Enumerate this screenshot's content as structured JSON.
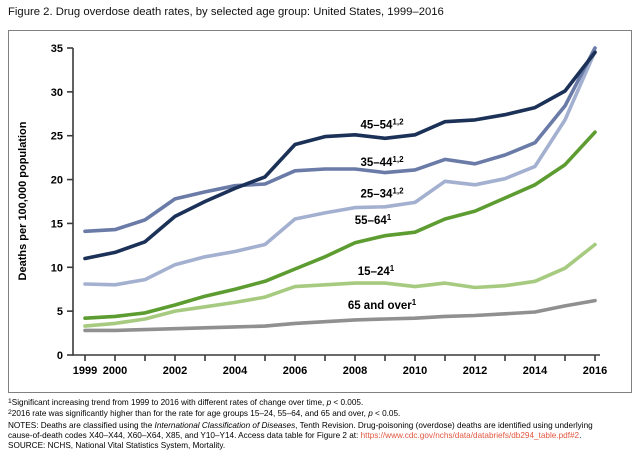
{
  "title": "Figure 2. Drug overdose death rates, by selected age group: United States, 1999–2016",
  "colors": {
    "axis": "#3a3a3a",
    "frame_border": "#808080",
    "link": "#e25740",
    "text": "#000000"
  },
  "chart_data": {
    "type": "line",
    "title": "Figure 2. Drug overdose death rates, by selected age group: United States, 1999–2016",
    "xlabel": "",
    "ylabel": "Deaths per 100,000 population",
    "ylim": [
      0,
      35
    ],
    "yticks": [
      0,
      5,
      10,
      15,
      20,
      25,
      30,
      35
    ],
    "x": [
      1999,
      2000,
      2001,
      2002,
      2003,
      2004,
      2005,
      2006,
      2007,
      2008,
      2009,
      2010,
      2011,
      2012,
      2013,
      2014,
      2015,
      2016
    ],
    "xtick_labeled": [
      1999,
      2000,
      2002,
      2004,
      2006,
      2008,
      2010,
      2012,
      2014,
      2016
    ],
    "grid": false,
    "legend_position": "inline-labels",
    "series": [
      {
        "name": "65 and over",
        "sup": "1",
        "color": "#909090",
        "values": [
          2.8,
          2.8,
          2.9,
          3.0,
          3.1,
          3.2,
          3.3,
          3.6,
          3.8,
          4.0,
          4.1,
          4.2,
          4.4,
          4.5,
          4.7,
          4.9,
          5.6,
          6.2
        ]
      },
      {
        "name": "15–24",
        "sup": "1",
        "color": "#a6cb80",
        "values": [
          3.3,
          3.6,
          4.1,
          5.0,
          5.5,
          6.0,
          6.6,
          7.8,
          8.0,
          8.2,
          8.2,
          7.8,
          8.2,
          7.7,
          7.9,
          8.4,
          9.9,
          12.6
        ]
      },
      {
        "name": "55–64",
        "sup": "1",
        "color": "#5d9c31",
        "values": [
          4.2,
          4.4,
          4.8,
          5.7,
          6.7,
          7.5,
          8.4,
          9.8,
          11.2,
          12.8,
          13.6,
          14.0,
          15.5,
          16.4,
          17.9,
          19.4,
          21.7,
          25.4
        ]
      },
      {
        "name": "25–34",
        "sup": "1,2",
        "color": "#a3b0d0",
        "values": [
          8.1,
          8.0,
          8.6,
          10.3,
          11.2,
          11.8,
          12.6,
          15.5,
          16.2,
          16.8,
          16.9,
          17.4,
          19.8,
          19.4,
          20.1,
          21.5,
          26.8,
          34.6
        ]
      },
      {
        "name": "35–44",
        "sup": "1,2",
        "color": "#6a7ba8",
        "values": [
          14.1,
          14.3,
          15.4,
          17.8,
          18.6,
          19.3,
          19.5,
          21.0,
          21.2,
          21.2,
          20.8,
          21.1,
          22.3,
          21.8,
          22.8,
          24.2,
          28.4,
          35.0
        ]
      },
      {
        "name": "45–54",
        "sup": "1,2",
        "color": "#1b3157",
        "values": [
          11.0,
          11.7,
          12.9,
          15.8,
          17.5,
          19.0,
          20.3,
          24.0,
          24.9,
          25.1,
          24.7,
          25.1,
          26.6,
          26.8,
          27.4,
          28.2,
          30.1,
          34.5
        ]
      }
    ],
    "annotations": [
      {
        "text": "45–54",
        "sup": "1,2",
        "x": 2008.9,
        "y": 26.3
      },
      {
        "text": "35–44",
        "sup": "1,2",
        "x": 2008.9,
        "y": 22.0
      },
      {
        "text": "25–34",
        "sup": "1,2",
        "x": 2008.9,
        "y": 18.4
      },
      {
        "text": "55–64",
        "sup": "1",
        "x": 2008.6,
        "y": 15.4
      },
      {
        "text": "15–24",
        "sup": "1",
        "x": 2008.7,
        "y": 9.6
      },
      {
        "text": "65 and over",
        "sup": "1",
        "x": 2008.9,
        "y": 5.7
      }
    ]
  },
  "footnotes": [
    [
      {
        "s": "sup",
        "t": "1"
      },
      {
        "s": "n",
        "t": "Significant increasing trend from 1999 to 2016 with different rates of change over time, "
      },
      {
        "s": "i",
        "t": "p"
      },
      {
        "s": "n",
        "t": " < 0.005."
      }
    ],
    [
      {
        "s": "sup",
        "t": "2"
      },
      {
        "s": "n",
        "t": "2016 rate was significantly higher than for the rate for age groups 15–24, 55–64, and 65 and over, "
      },
      {
        "s": "i",
        "t": "p"
      },
      {
        "s": "n",
        "t": " < 0.05."
      }
    ],
    [
      {
        "s": "n",
        "t": "NOTES: Deaths are classified using the "
      },
      {
        "s": "i",
        "t": "International Classification of Diseases"
      },
      {
        "s": "n",
        "t": ", Tenth Revision. Drug-poisoning (overdose) deaths are identified using underlying"
      }
    ],
    [
      {
        "s": "n",
        "t": "cause-of-death codes X40–X44, X60–X64, X85, and Y10–Y14. Access data table for Figure 2 at: "
      },
      {
        "s": "l",
        "t": "https://www.cdc.gov/nchs/data/databriefs/db294_table.pdf#2"
      },
      {
        "s": "n",
        "t": "."
      }
    ],
    [
      {
        "s": "n",
        "t": "SOURCE: NCHS, National Vital Statistics System, Mortality."
      }
    ]
  ]
}
